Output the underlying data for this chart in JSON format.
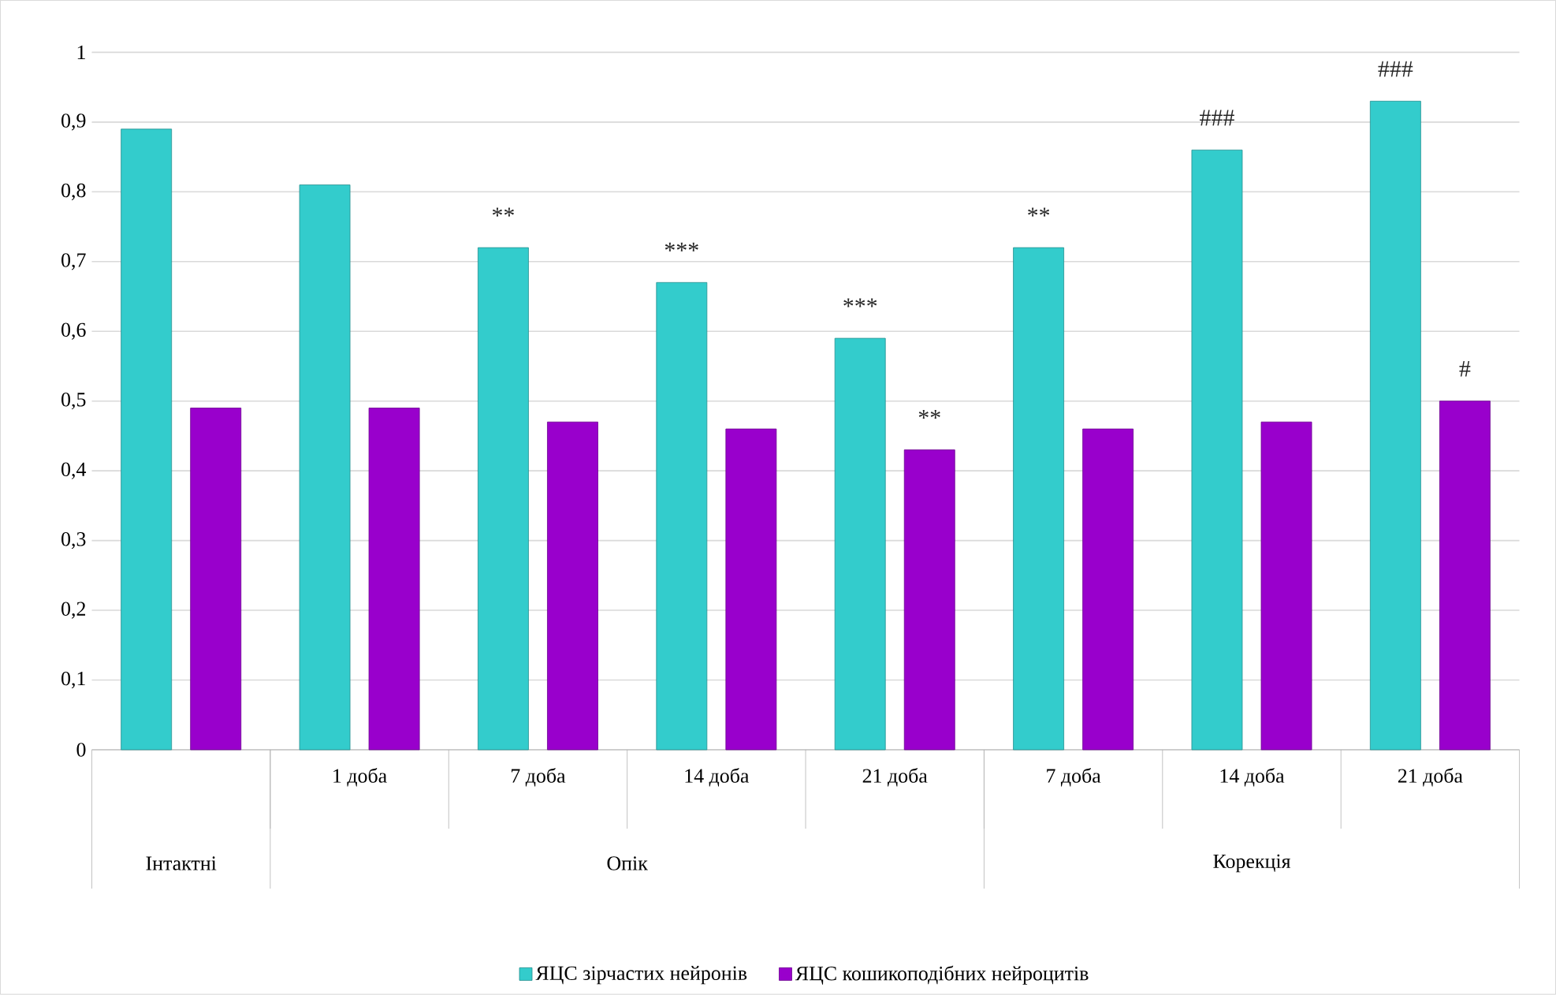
{
  "chart_data": {
    "type": "bar",
    "categories": [
      null,
      "1 доба",
      "7 доба",
      "14 доба",
      "21 доба",
      "7 доба",
      "14 доба",
      "21 доба"
    ],
    "annotations": [
      "Інтактні",
      "Опік",
      "Корекція"
    ],
    "series": [
      {
        "name": "ЯЦС зірчастих нейронів",
        "color": "#33cccc",
        "values": [
          0.89,
          0.81,
          0.72,
          0.67,
          0.59,
          0.72,
          0.86,
          0.93
        ],
        "value_labels": [
          null,
          null,
          "**",
          "***",
          "***",
          "**",
          "###",
          "###"
        ]
      },
      {
        "name": "ЯЦС кошикоподібних нейроцитів",
        "color": "#9900cc",
        "values": [
          0.49,
          0.49,
          0.47,
          0.46,
          0.43,
          0.46,
          0.47,
          0.5
        ],
        "value_labels": [
          null,
          null,
          null,
          null,
          "**",
          null,
          null,
          "#"
        ]
      }
    ],
    "ylim": [
      0,
      1
    ],
    "yticks": [
      0,
      {
        "value": 0.1,
        "label": "0,1"
      },
      {
        "value": 0.2,
        "label": "0,2"
      },
      {
        "value": 0.3,
        "label": "0,3"
      },
      {
        "value": 0.4,
        "label": "0,4"
      },
      {
        "value": 0.5,
        "label": "0,5"
      },
      {
        "value": 0.6,
        "label": "0,6"
      },
      {
        "value": 0.7,
        "label": "0,7"
      },
      {
        "value": 0.8,
        "label": "0,8"
      },
      {
        "value": 0.9,
        "label": "0,9"
      },
      1
    ],
    "grid": "y",
    "legend": "bottom"
  }
}
